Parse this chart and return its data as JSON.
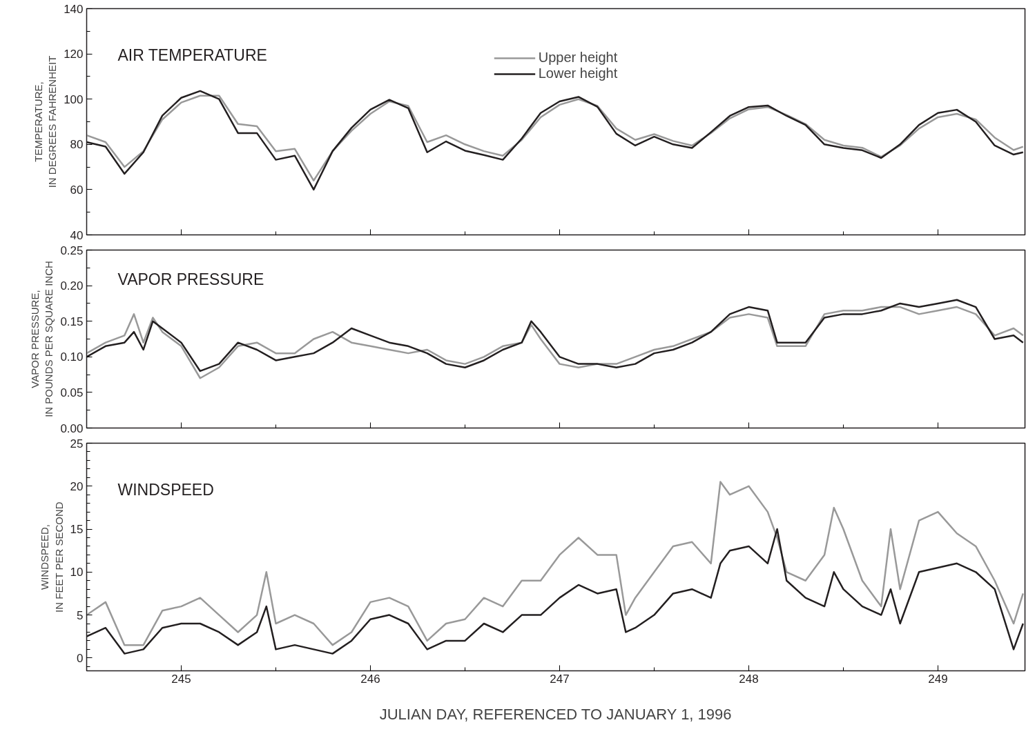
{
  "chart_data": [
    {
      "type": "line",
      "title": "AIR TEMPERATURE",
      "ylabel": "TEMPERATURE,\nIN DEGREES FAHRENHEIT",
      "legend": "top",
      "grid": false,
      "tick_labels": "y",
      "line_style": "solid",
      "xlim": [
        244.5,
        249.46
      ],
      "xticks": [
        {
          "value": 244.5,
          "label": null
        },
        245,
        {
          "value": 245.5,
          "label": null
        },
        246,
        {
          "value": 246.5,
          "label": null
        },
        247,
        {
          "value": 247.5,
          "label": null
        },
        248,
        {
          "value": 248.5,
          "label": null
        },
        249
      ],
      "ylim": [
        40,
        140
      ],
      "yticks": [
        40,
        {
          "value": 50,
          "label": null
        },
        60,
        {
          "value": 70,
          "label": null
        },
        80,
        {
          "value": 90,
          "label": null
        },
        100,
        {
          "value": 110,
          "label": null
        },
        120,
        {
          "value": 130,
          "label": null
        },
        140
      ],
      "x": [
        244.5,
        244.6,
        244.7,
        244.8,
        244.9,
        245.0,
        245.1,
        245.2,
        245.3,
        245.4,
        245.5,
        245.6,
        245.7,
        245.8,
        245.9,
        246.0,
        246.1,
        246.2,
        246.3,
        246.4,
        246.5,
        246.6,
        246.7,
        246.8,
        246.9,
        247.0,
        247.1,
        247.2,
        247.3,
        247.4,
        247.5,
        247.6,
        247.7,
        247.8,
        247.9,
        248.0,
        248.1,
        248.2,
        248.3,
        248.4,
        248.5,
        248.6,
        248.7,
        248.8,
        248.9,
        249.0,
        249.1,
        249.2,
        249.3,
        249.4,
        249.45
      ],
      "series": [
        {
          "name": "Upper height",
          "color": "#999999",
          "values": [
            84,
            81,
            70,
            77,
            91,
            98.5,
            101.5,
            101.5,
            89,
            88,
            77,
            78,
            64,
            77,
            86,
            93.5,
            99,
            97,
            81,
            84,
            80,
            77,
            75,
            82,
            92,
            97.5,
            100,
            97,
            87,
            82,
            84.5,
            81.5,
            79.5,
            85,
            91.5,
            95.5,
            96.5,
            93,
            89,
            82,
            79.5,
            78.5,
            74.5,
            79.5,
            87,
            92,
            93.5,
            91,
            83,
            77.5,
            79
          ]
        },
        {
          "name": "Lower height",
          "color": "#231f20",
          "values": [
            81,
            79,
            67,
            76.5,
            92.7,
            100.6,
            103.6,
            100,
            85,
            85,
            73.2,
            75,
            60,
            77,
            87.3,
            95.4,
            99.7,
            96,
            76.5,
            81.3,
            77.2,
            75.3,
            73.2,
            82.6,
            93.9,
            99,
            101,
            96.6,
            84.7,
            79.5,
            83.4,
            80,
            78.4,
            85.4,
            92.6,
            96.5,
            97.2,
            92.6,
            88.6,
            80,
            78.4,
            77.4,
            74,
            80,
            88.6,
            93.9,
            95.3,
            90,
            79.5,
            75.5,
            76.5
          ]
        }
      ]
    },
    {
      "type": "line",
      "title": "VAPOR PRESSURE",
      "ylabel": "VAPOR PRESSURE,\nIN POUNDS PER SQUARE INCH",
      "grid": false,
      "tick_labels": "y",
      "line_style": "solid",
      "xlim": [
        244.5,
        249.46
      ],
      "xticks": [
        {
          "value": 244.5,
          "label": null
        },
        245,
        {
          "value": 245.5,
          "label": null
        },
        246,
        {
          "value": 246.5,
          "label": null
        },
        247,
        {
          "value": 247.5,
          "label": null
        },
        248,
        {
          "value": 248.5,
          "label": null
        },
        249
      ],
      "ylim": [
        0,
        0.25
      ],
      "yticks": [
        {
          "value": 0,
          "label": "0.00"
        },
        {
          "value": 0.025,
          "label": null
        },
        {
          "value": 0.05,
          "label": "0.05"
        },
        {
          "value": 0.075,
          "label": null
        },
        {
          "value": 0.1,
          "label": "0.10"
        },
        {
          "value": 0.125,
          "label": null
        },
        {
          "value": 0.15,
          "label": "0.15"
        },
        {
          "value": 0.175,
          "label": null
        },
        {
          "value": 0.2,
          "label": "0.20"
        },
        {
          "value": 0.225,
          "label": null
        },
        {
          "value": 0.25,
          "label": "0.25"
        }
      ],
      "x": [
        244.5,
        244.6,
        244.7,
        244.75,
        244.8,
        244.85,
        244.9,
        245.0,
        245.1,
        245.2,
        245.3,
        245.4,
        245.5,
        245.6,
        245.7,
        245.8,
        245.9,
        246.0,
        246.1,
        246.2,
        246.3,
        246.4,
        246.5,
        246.6,
        246.7,
        246.8,
        246.85,
        246.9,
        247.0,
        247.1,
        247.2,
        247.3,
        247.4,
        247.5,
        247.6,
        247.7,
        247.8,
        247.9,
        248.0,
        248.1,
        248.15,
        248.2,
        248.3,
        248.4,
        248.5,
        248.6,
        248.7,
        248.8,
        248.9,
        249.0,
        249.1,
        249.2,
        249.3,
        249.4,
        249.45
      ],
      "series": [
        {
          "color": "#999999",
          "values": [
            0.105,
            0.12,
            0.13,
            0.16,
            0.12,
            0.155,
            0.135,
            0.115,
            0.07,
            0.085,
            0.115,
            0.12,
            0.105,
            0.105,
            0.125,
            0.135,
            0.12,
            0.115,
            0.11,
            0.105,
            0.11,
            0.095,
            0.09,
            0.1,
            0.115,
            0.12,
            0.145,
            0.125,
            0.09,
            0.085,
            0.09,
            0.09,
            0.1,
            0.11,
            0.115,
            0.125,
            0.135,
            0.155,
            0.16,
            0.155,
            0.115,
            0.115,
            0.115,
            0.16,
            0.165,
            0.165,
            0.17,
            0.17,
            0.16,
            0.165,
            0.17,
            0.16,
            0.13,
            0.14,
            0.13
          ]
        },
        {
          "color": "#231f20",
          "values": [
            0.1,
            0.115,
            0.12,
            0.135,
            0.11,
            0.15,
            0.14,
            0.12,
            0.08,
            0.09,
            0.12,
            0.11,
            0.095,
            0.1,
            0.105,
            0.12,
            0.14,
            0.13,
            0.12,
            0.115,
            0.105,
            0.09,
            0.085,
            0.095,
            0.11,
            0.12,
            0.15,
            0.135,
            0.1,
            0.09,
            0.09,
            0.085,
            0.09,
            0.105,
            0.11,
            0.12,
            0.135,
            0.16,
            0.17,
            0.165,
            0.12,
            0.12,
            0.12,
            0.155,
            0.16,
            0.16,
            0.165,
            0.175,
            0.17,
            0.175,
            0.18,
            0.17,
            0.125,
            0.13,
            0.12
          ]
        }
      ]
    },
    {
      "type": "line",
      "title": "WINDSPEED",
      "ylabel": "WINDSPEED,\nIN FEET PER SECOND",
      "xlabel": "JULIAN DAY, REFERENCED TO JANUARY 1, 1996",
      "grid": false,
      "line_style": "solid",
      "xlim": [
        244.5,
        249.46
      ],
      "xticks": [
        {
          "value": 244.5,
          "label": null
        },
        {
          "value": 245,
          "label": "245"
        },
        {
          "value": 245.5,
          "label": null
        },
        {
          "value": 246,
          "label": "246"
        },
        {
          "value": 246.5,
          "label": null
        },
        {
          "value": 247,
          "label": "247"
        },
        {
          "value": 247.5,
          "label": null
        },
        {
          "value": 248,
          "label": "248"
        },
        {
          "value": 248.5,
          "label": null
        },
        {
          "value": 249,
          "label": "249"
        }
      ],
      "ylim": [
        -1.5,
        25
      ],
      "yticks": [
        {
          "value": -1,
          "label": null
        },
        0,
        {
          "value": 1,
          "label": null
        },
        {
          "value": 2,
          "label": null
        },
        {
          "value": 3,
          "label": null
        },
        {
          "value": 4,
          "label": null
        },
        5,
        {
          "value": 6,
          "label": null
        },
        {
          "value": 7,
          "label": null
        },
        {
          "value": 8,
          "label": null
        },
        {
          "value": 9,
          "label": null
        },
        10,
        {
          "value": 11,
          "label": null
        },
        {
          "value": 12,
          "label": null
        },
        {
          "value": 13,
          "label": null
        },
        {
          "value": 14,
          "label": null
        },
        15,
        {
          "value": 16,
          "label": null
        },
        {
          "value": 17,
          "label": null
        },
        {
          "value": 18,
          "label": null
        },
        {
          "value": 19,
          "label": null
        },
        20,
        {
          "value": 21,
          "label": null
        },
        {
          "value": 22,
          "label": null
        },
        {
          "value": 23,
          "label": null
        },
        {
          "value": 24,
          "label": null
        },
        25
      ],
      "x": [
        244.5,
        244.6,
        244.7,
        244.8,
        244.9,
        245.0,
        245.1,
        245.2,
        245.3,
        245.4,
        245.45,
        245.5,
        245.6,
        245.7,
        245.8,
        245.9,
        246.0,
        246.1,
        246.2,
        246.3,
        246.4,
        246.5,
        246.6,
        246.7,
        246.8,
        246.9,
        247.0,
        247.1,
        247.2,
        247.3,
        247.35,
        247.4,
        247.5,
        247.6,
        247.7,
        247.8,
        247.85,
        247.9,
        248.0,
        248.1,
        248.15,
        248.2,
        248.3,
        248.4,
        248.45,
        248.5,
        248.6,
        248.7,
        248.75,
        248.8,
        248.9,
        249.0,
        249.1,
        249.2,
        249.3,
        249.4,
        249.45
      ],
      "series": [
        {
          "color": "#999999",
          "values": [
            5,
            6.5,
            1.5,
            1.5,
            5.5,
            6,
            7,
            5,
            3,
            5,
            10,
            4,
            5,
            4,
            1.5,
            3,
            6.5,
            7,
            6,
            2,
            4,
            4.5,
            7,
            6,
            9,
            9,
            12,
            14,
            12,
            12,
            5,
            7,
            10,
            13,
            13.5,
            11,
            20.5,
            19,
            20,
            17,
            14,
            10,
            9,
            12,
            17.5,
            15,
            9,
            6,
            15,
            8,
            16,
            17,
            14.5,
            13,
            9,
            4,
            7.5
          ]
        },
        {
          "color": "#231f20",
          "values": [
            2.5,
            3.5,
            0.5,
            1,
            3.5,
            4,
            4,
            3,
            1.5,
            3,
            6,
            1,
            1.5,
            1,
            0.5,
            2,
            4.5,
            5,
            4,
            1,
            2,
            2,
            4,
            3,
            5,
            5,
            7,
            8.5,
            7.5,
            8,
            3,
            3.5,
            5,
            7.5,
            8,
            7,
            11,
            12.5,
            13,
            11,
            15,
            9,
            7,
            6,
            10,
            8,
            6,
            5,
            8,
            4,
            10,
            10.5,
            11,
            10,
            8,
            1,
            4
          ]
        }
      ]
    }
  ]
}
